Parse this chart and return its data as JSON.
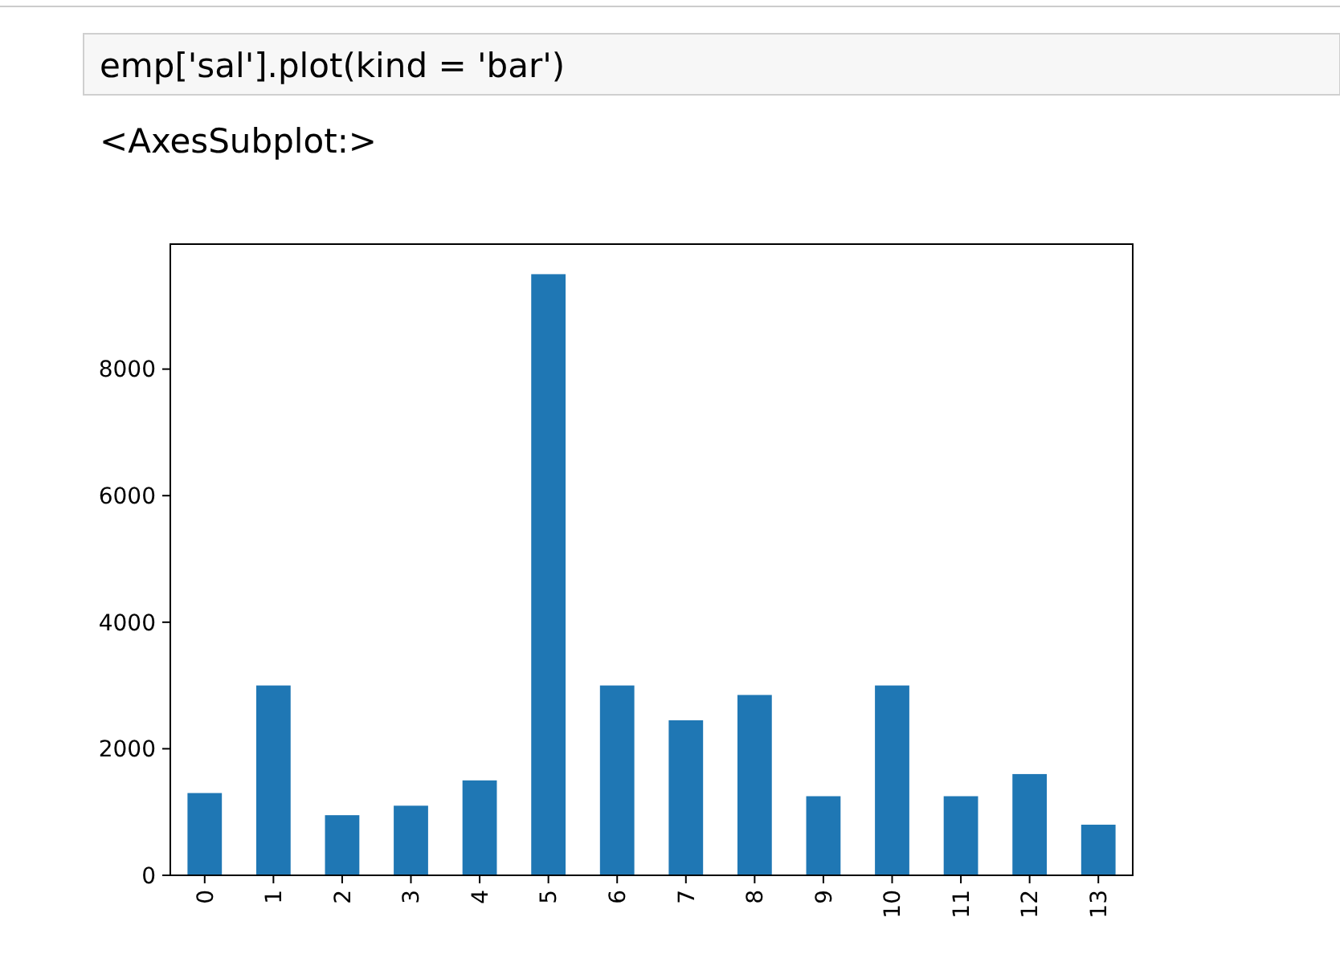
{
  "chart_data": {
    "type": "bar",
    "annotations": [
      "emp['sal'].plot(kind = 'bar')",
      "<AxesSubplot:>"
    ],
    "categories": [
      "0",
      "1",
      "2",
      "3",
      "4",
      "5",
      "6",
      "7",
      "8",
      "9",
      "10",
      "11",
      "12",
      "13"
    ],
    "values": [
      1300,
      3000,
      950,
      1100,
      1500,
      9500,
      3000,
      2450,
      2850,
      1250,
      3000,
      1250,
      1600,
      800
    ],
    "color": "#1f77b4",
    "ylim": [
      0,
      9975
    ],
    "yticks": [
      0,
      2000,
      4000,
      6000,
      8000
    ],
    "grid": false
  }
}
